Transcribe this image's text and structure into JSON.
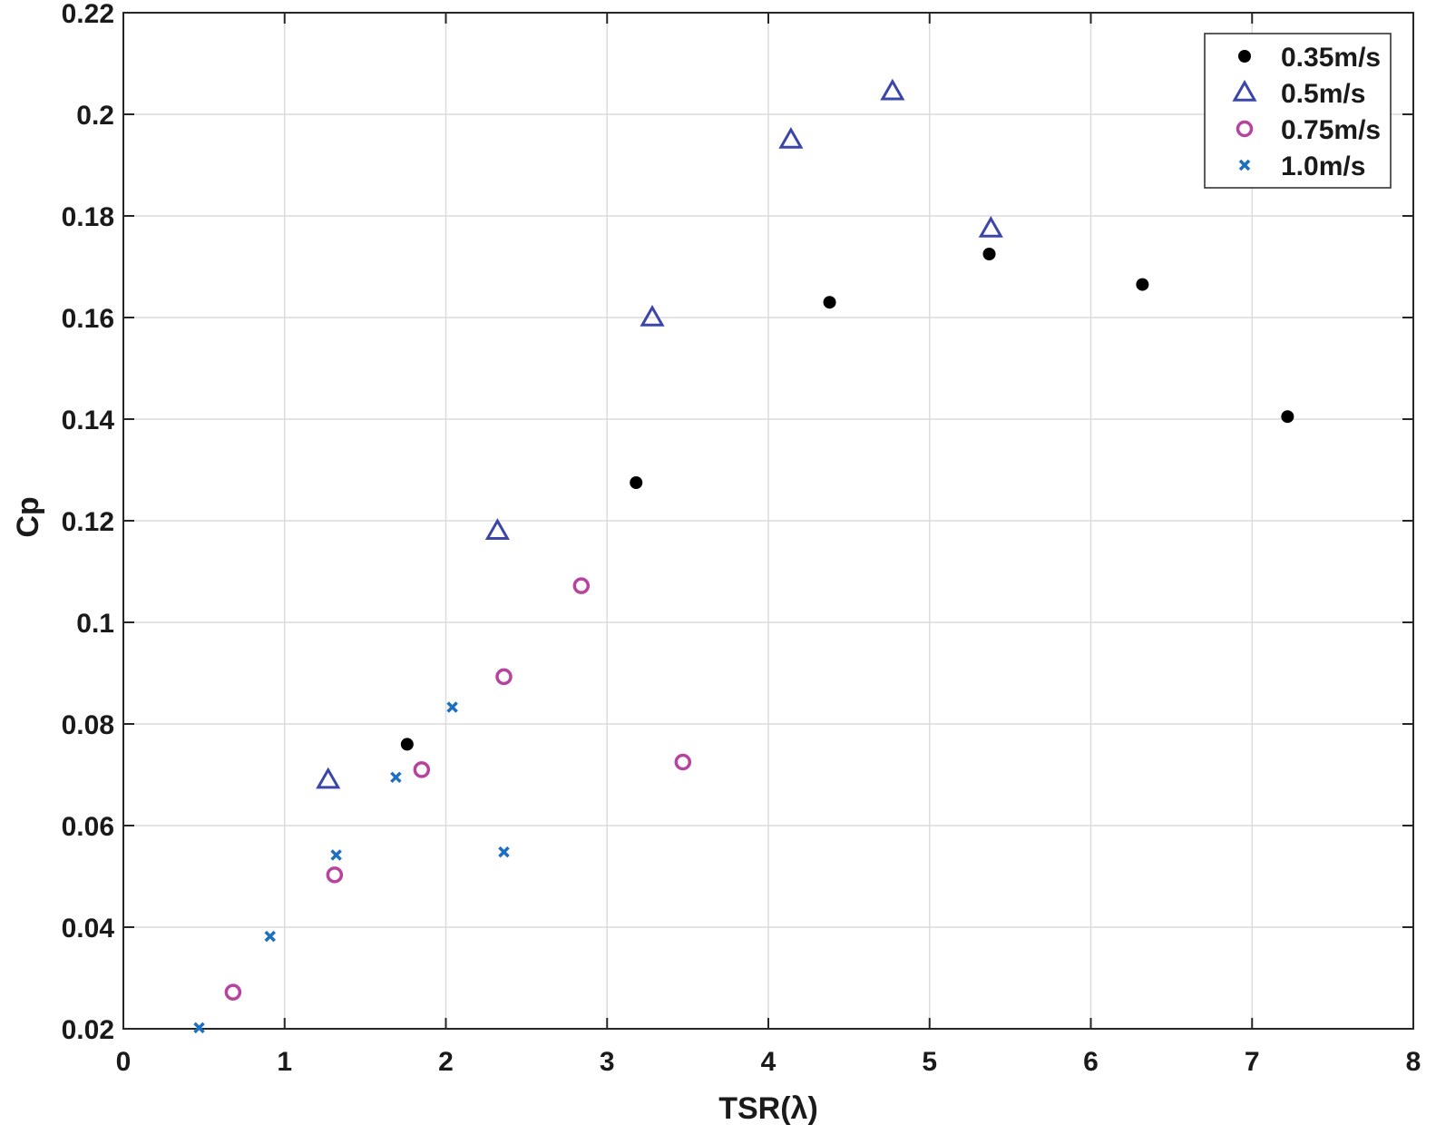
{
  "chart_data": {
    "type": "scatter",
    "title": "",
    "xlabel": "TSR(λ)",
    "ylabel": "Cp",
    "xlim": [
      0,
      8
    ],
    "ylim": [
      0.02,
      0.22
    ],
    "xticks": [
      0,
      1,
      2,
      3,
      4,
      5,
      6,
      7,
      8
    ],
    "xtick_labels": [
      "0",
      "1",
      "2",
      "3",
      "4",
      "5",
      "6",
      "7",
      "8"
    ],
    "yticks": [
      0.02,
      0.04,
      0.06,
      0.08,
      0.1,
      0.12,
      0.14,
      0.16,
      0.18,
      0.2,
      0.22
    ],
    "ytick_labels": [
      "0.02",
      "0.04",
      "0.06",
      "0.08",
      "0.1",
      "0.12",
      "0.14",
      "0.16",
      "0.18",
      "0.2",
      "0.22"
    ],
    "grid": true,
    "legend_position": "top-right",
    "series": [
      {
        "name": "0.35m/s",
        "marker": "filled-circle",
        "color": "#000000",
        "points": [
          [
            1.76,
            0.076
          ],
          [
            3.18,
            0.1275
          ],
          [
            4.38,
            0.163
          ],
          [
            5.37,
            0.1725
          ],
          [
            6.32,
            0.1665
          ],
          [
            7.22,
            0.1405
          ]
        ]
      },
      {
        "name": "0.5m/s",
        "marker": "triangle",
        "color": "#3b46a8",
        "points": [
          [
            1.27,
            0.069
          ],
          [
            2.32,
            0.118
          ],
          [
            3.28,
            0.16
          ],
          [
            4.14,
            0.195
          ],
          [
            4.77,
            0.2045
          ],
          [
            5.38,
            0.1775
          ]
        ]
      },
      {
        "name": "0.75m/s",
        "marker": "open-circle",
        "color": "#b8439f",
        "points": [
          [
            0.68,
            0.0272
          ],
          [
            1.31,
            0.0503
          ],
          [
            1.85,
            0.071
          ],
          [
            2.36,
            0.0893
          ],
          [
            2.84,
            0.1072
          ],
          [
            3.47,
            0.0725
          ]
        ]
      },
      {
        "name": "1.0m/s",
        "marker": "x",
        "color": "#1f6fbf",
        "points": [
          [
            0.47,
            0.0202
          ],
          [
            0.91,
            0.0382
          ],
          [
            1.32,
            0.0542
          ],
          [
            1.69,
            0.0695
          ],
          [
            2.04,
            0.0833
          ],
          [
            2.36,
            0.0548
          ]
        ]
      }
    ]
  }
}
